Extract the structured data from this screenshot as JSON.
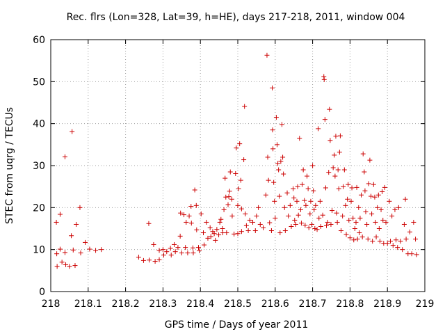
{
  "chart_data": {
    "type": "scatter",
    "title": "Rec. flrs (Lon=328, Lat=39, h=HE), days 217-218, 2011, window 004",
    "xlabel": "GPS time / Days of year 2011",
    "ylabel": "STEC from uqrg / TECUs",
    "xlim": [
      218,
      219
    ],
    "ylim": [
      0,
      60
    ],
    "xticks": [
      "218",
      "218.1",
      "218.2",
      "218.3",
      "218.4",
      "218.5",
      "218.6",
      "218.7",
      "218.8",
      "218.9",
      "219"
    ],
    "yticks": [
      "0",
      "10",
      "20",
      "30",
      "40",
      "50",
      "60"
    ],
    "grid": true,
    "legend": "none",
    "marker": "plus",
    "color": "#cc0000",
    "points": [
      [
        218.015,
        16.5
      ],
      [
        218.016,
        9.0
      ],
      [
        218.017,
        6.0
      ],
      [
        218.025,
        18.4
      ],
      [
        218.025,
        10.1
      ],
      [
        218.03,
        7.0
      ],
      [
        218.038,
        32.1
      ],
      [
        218.038,
        9.3
      ],
      [
        218.04,
        6.4
      ],
      [
        218.05,
        6.0
      ],
      [
        218.055,
        13.3
      ],
      [
        218.057,
        38.1
      ],
      [
        218.06,
        9.9
      ],
      [
        218.065,
        6.2
      ],
      [
        218.068,
        16.0
      ],
      [
        218.078,
        20.0
      ],
      [
        218.08,
        9.2
      ],
      [
        218.092,
        11.7
      ],
      [
        218.104,
        10.1
      ],
      [
        218.12,
        9.8
      ],
      [
        218.135,
        10.0
      ],
      [
        218.235,
        8.2
      ],
      [
        218.248,
        7.4
      ],
      [
        218.262,
        16.2
      ],
      [
        218.263,
        7.5
      ],
      [
        218.275,
        11.2
      ],
      [
        218.279,
        7.2
      ],
      [
        218.29,
        9.8
      ],
      [
        218.29,
        7.6
      ],
      [
        218.3,
        10.0
      ],
      [
        218.302,
        8.7
      ],
      [
        218.31,
        9.5
      ],
      [
        218.32,
        10.3
      ],
      [
        218.322,
        8.7
      ],
      [
        218.33,
        11.2
      ],
      [
        218.333,
        9.5
      ],
      [
        218.34,
        10.5
      ],
      [
        218.346,
        13.2
      ],
      [
        218.347,
        18.7
      ],
      [
        218.35,
        9.2
      ],
      [
        218.356,
        18.3
      ],
      [
        218.36,
        10.5
      ],
      [
        218.362,
        16.5
      ],
      [
        218.366,
        9.2
      ],
      [
        218.37,
        18.0
      ],
      [
        218.375,
        20.3
      ],
      [
        218.376,
        16.3
      ],
      [
        218.38,
        10.4
      ],
      [
        218.381,
        9.2
      ],
      [
        218.385,
        24.2
      ],
      [
        218.389,
        20.5
      ],
      [
        218.39,
        14.7
      ],
      [
        218.395,
        10.5
      ],
      [
        218.397,
        9.7
      ],
      [
        218.402,
        18.5
      ],
      [
        218.408,
        14.0
      ],
      [
        218.41,
        11.1
      ],
      [
        218.416,
        16.5
      ],
      [
        218.42,
        12.7
      ],
      [
        218.426,
        15.2
      ],
      [
        218.428,
        13.1
      ],
      [
        218.433,
        14.3
      ],
      [
        218.437,
        13.8
      ],
      [
        218.44,
        12.2
      ],
      [
        218.444,
        14.8
      ],
      [
        218.449,
        13.5
      ],
      [
        218.452,
        16.5
      ],
      [
        218.455,
        17.2
      ],
      [
        218.459,
        15.0
      ],
      [
        218.46,
        14.0
      ],
      [
        218.463,
        19.5
      ],
      [
        218.466,
        27.0
      ],
      [
        218.468,
        22.5
      ],
      [
        218.47,
        14.0
      ],
      [
        218.474,
        20.7
      ],
      [
        218.476,
        22.6
      ],
      [
        218.478,
        23.9
      ],
      [
        218.48,
        28.5
      ],
      [
        218.484,
        22.0
      ],
      [
        218.485,
        18.0
      ],
      [
        218.49,
        13.7
      ],
      [
        218.494,
        28.1
      ],
      [
        218.496,
        34.2
      ],
      [
        218.5,
        13.8
      ],
      [
        218.5,
        20.5
      ],
      [
        218.502,
        24.5
      ],
      [
        218.505,
        35.2
      ],
      [
        218.508,
        26.5
      ],
      [
        218.51,
        14.3
      ],
      [
        218.51,
        19.7
      ],
      [
        218.516,
        31.4
      ],
      [
        218.518,
        44.1
      ],
      [
        218.52,
        18.5
      ],
      [
        218.523,
        15.7
      ],
      [
        218.528,
        14.5
      ],
      [
        218.532,
        17.0
      ],
      [
        218.54,
        16.5
      ],
      [
        218.547,
        14.5
      ],
      [
        218.55,
        18.0
      ],
      [
        218.555,
        20.0
      ],
      [
        218.56,
        16.0
      ],
      [
        218.568,
        15.2
      ],
      [
        218.575,
        23.0
      ],
      [
        218.578,
        56.3
      ],
      [
        218.58,
        32.0
      ],
      [
        218.582,
        26.5
      ],
      [
        218.585,
        16.4
      ],
      [
        218.59,
        14.5
      ],
      [
        218.592,
        48.5
      ],
      [
        218.593,
        38.5
      ],
      [
        218.594,
        34.0
      ],
      [
        218.596,
        26.0
      ],
      [
        218.598,
        21.5
      ],
      [
        218.6,
        17.5
      ],
      [
        218.603,
        41.5
      ],
      [
        218.605,
        35.0
      ],
      [
        218.607,
        30.5
      ],
      [
        218.609,
        29.0
      ],
      [
        218.611,
        22.7
      ],
      [
        218.613,
        14.0
      ],
      [
        218.615,
        31.0
      ],
      [
        218.618,
        39.8
      ],
      [
        218.62,
        32.0
      ],
      [
        218.622,
        28.0
      ],
      [
        218.625,
        20.0
      ],
      [
        218.627,
        14.5
      ],
      [
        218.632,
        23.5
      ],
      [
        218.635,
        18.0
      ],
      [
        218.64,
        20.5
      ],
      [
        218.643,
        15.5
      ],
      [
        218.648,
        24.5
      ],
      [
        218.65,
        22.3
      ],
      [
        218.652,
        17.0
      ],
      [
        218.655,
        16.0
      ],
      [
        218.658,
        21.5
      ],
      [
        218.66,
        25.0
      ],
      [
        218.662,
        18.2
      ],
      [
        218.665,
        36.5
      ],
      [
        218.668,
        19.5
      ],
      [
        218.67,
        16.3
      ],
      [
        218.672,
        25.5
      ],
      [
        218.675,
        29.0
      ],
      [
        218.678,
        21.7
      ],
      [
        218.68,
        15.8
      ],
      [
        218.682,
        20.5
      ],
      [
        218.685,
        27.5
      ],
      [
        218.688,
        24.5
      ],
      [
        218.69,
        15.2
      ],
      [
        218.693,
        18.5
      ],
      [
        218.695,
        21.5
      ],
      [
        218.698,
        16.0
      ],
      [
        218.7,
        30.0
      ],
      [
        218.702,
        24.0
      ],
      [
        218.704,
        19.5
      ],
      [
        218.706,
        15.0
      ],
      [
        218.708,
        20.5
      ],
      [
        218.712,
        14.8
      ],
      [
        218.715,
        38.8
      ],
      [
        218.717,
        17.5
      ],
      [
        218.72,
        21.5
      ],
      [
        218.722,
        15.5
      ],
      [
        218.727,
        18.2
      ],
      [
        218.73,
        51.2
      ],
      [
        218.731,
        50.5
      ],
      [
        218.733,
        41.0
      ],
      [
        218.735,
        24.7
      ],
      [
        218.737,
        15.7
      ],
      [
        218.74,
        16.5
      ],
      [
        218.743,
        28.4
      ],
      [
        218.745,
        43.4
      ],
      [
        218.747,
        36.0
      ],
      [
        218.749,
        16.0
      ],
      [
        218.752,
        19.3
      ],
      [
        218.755,
        29.5
      ],
      [
        218.758,
        32.5
      ],
      [
        218.76,
        27.5
      ],
      [
        218.762,
        37.0
      ],
      [
        218.764,
        18.7
      ],
      [
        218.766,
        16.5
      ],
      [
        218.768,
        29.0
      ],
      [
        218.77,
        24.5
      ],
      [
        218.772,
        33.2
      ],
      [
        218.774,
        37.1
      ],
      [
        218.776,
        14.5
      ],
      [
        218.78,
        18.0
      ],
      [
        218.782,
        25.0
      ],
      [
        218.785,
        29.0
      ],
      [
        218.788,
        20.5
      ],
      [
        218.79,
        13.6
      ],
      [
        218.793,
        22.0
      ],
      [
        218.795,
        25.5
      ],
      [
        218.797,
        17.0
      ],
      [
        218.8,
        12.8
      ],
      [
        218.803,
        21.5
      ],
      [
        218.805,
        24.7
      ],
      [
        218.808,
        17.5
      ],
      [
        218.81,
        12.3
      ],
      [
        218.813,
        15.0
      ],
      [
        218.816,
        16.5
      ],
      [
        218.818,
        24.8
      ],
      [
        218.82,
        12.5
      ],
      [
        218.823,
        20.0
      ],
      [
        218.825,
        14.0
      ],
      [
        218.827,
        17.5
      ],
      [
        218.83,
        23.0
      ],
      [
        218.833,
        13.0
      ],
      [
        218.835,
        32.8
      ],
      [
        218.838,
        28.5
      ],
      [
        218.84,
        24.0
      ],
      [
        218.842,
        19.0
      ],
      [
        218.845,
        16.0
      ],
      [
        218.848,
        12.5
      ],
      [
        218.85,
        25.7
      ],
      [
        218.853,
        31.3
      ],
      [
        218.856,
        22.7
      ],
      [
        218.858,
        18.5
      ],
      [
        218.86,
        12.0
      ],
      [
        218.863,
        25.5
      ],
      [
        218.866,
        22.5
      ],
      [
        218.868,
        16.5
      ],
      [
        218.87,
        13.0
      ],
      [
        218.873,
        20.0
      ],
      [
        218.876,
        23.0
      ],
      [
        218.878,
        15.0
      ],
      [
        218.88,
        12.0
      ],
      [
        218.883,
        19.5
      ],
      [
        218.886,
        23.8
      ],
      [
        218.888,
        17.0
      ],
      [
        218.89,
        11.5
      ],
      [
        218.893,
        24.8
      ],
      [
        218.896,
        16.5
      ],
      [
        218.9,
        11.5
      ],
      [
        218.905,
        21.5
      ],
      [
        218.908,
        12.0
      ],
      [
        218.912,
        18.0
      ],
      [
        218.915,
        11.0
      ],
      [
        218.92,
        19.5
      ],
      [
        218.923,
        12.3
      ],
      [
        218.927,
        10.5
      ],
      [
        218.93,
        20.0
      ],
      [
        218.935,
        12.0
      ],
      [
        218.94,
        10.0
      ],
      [
        218.945,
        16.0
      ],
      [
        218.948,
        22.0
      ],
      [
        218.95,
        12.5
      ],
      [
        218.955,
        9.0
      ],
      [
        218.96,
        14.2
      ],
      [
        218.965,
        9.0
      ],
      [
        218.97,
        16.5
      ],
      [
        218.975,
        12.5
      ],
      [
        218.978,
        8.8
      ]
    ]
  }
}
